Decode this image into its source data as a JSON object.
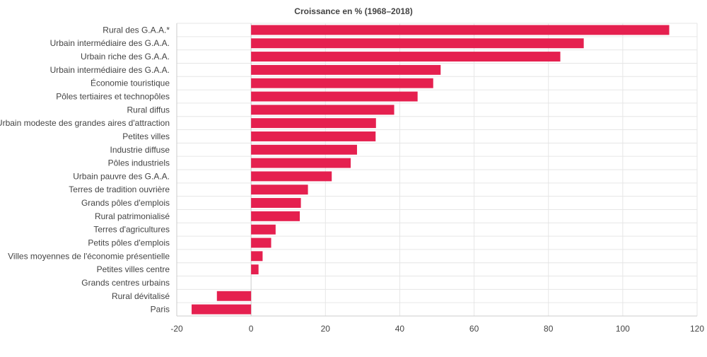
{
  "chart_data": {
    "type": "bar",
    "orientation": "horizontal",
    "title": "Croissance en % (1968–2018)",
    "categories": [
      "Rural des G.A.A.*",
      "Urbain intermédiaire des G.A.A.",
      "Urbain riche des G.A.A.",
      "Urbain intermédiaire des G.A.A.",
      "Économie touristique",
      "Pôles tertiaires et technopôles",
      "Rural diffus",
      "Urbain modeste des grandes aires d'attraction",
      "Petites villes",
      "Industrie diffuse",
      "Pôles industriels",
      "Urbain pauvre des G.A.A.",
      "Terres de tradition ouvrière",
      "Grands pôles d'emplois",
      "Rural patrimonialisé",
      "Terres d'agricultures",
      "Petits pôles d'emplois",
      "Villes moyennes de l'économie présentielle",
      "Petites villes centre",
      "Grands centres urbains",
      "Rural dévitalisé",
      "Paris"
    ],
    "values": [
      112.5,
      89.5,
      83.2,
      51.0,
      49.0,
      44.8,
      38.5,
      33.6,
      33.5,
      28.5,
      26.8,
      21.7,
      15.3,
      13.4,
      13.1,
      6.6,
      5.4,
      3.1,
      2.0,
      0,
      -9.2,
      -16.0
    ],
    "xlim": [
      -20,
      120
    ],
    "xticks": [
      -20,
      0,
      20,
      40,
      60,
      80,
      100,
      120
    ],
    "xlabel": "",
    "ylabel": "",
    "grid": true,
    "bar_color": "#e5204f",
    "grid_color": "#e6e6e6",
    "axis_color": "#cccccc"
  }
}
